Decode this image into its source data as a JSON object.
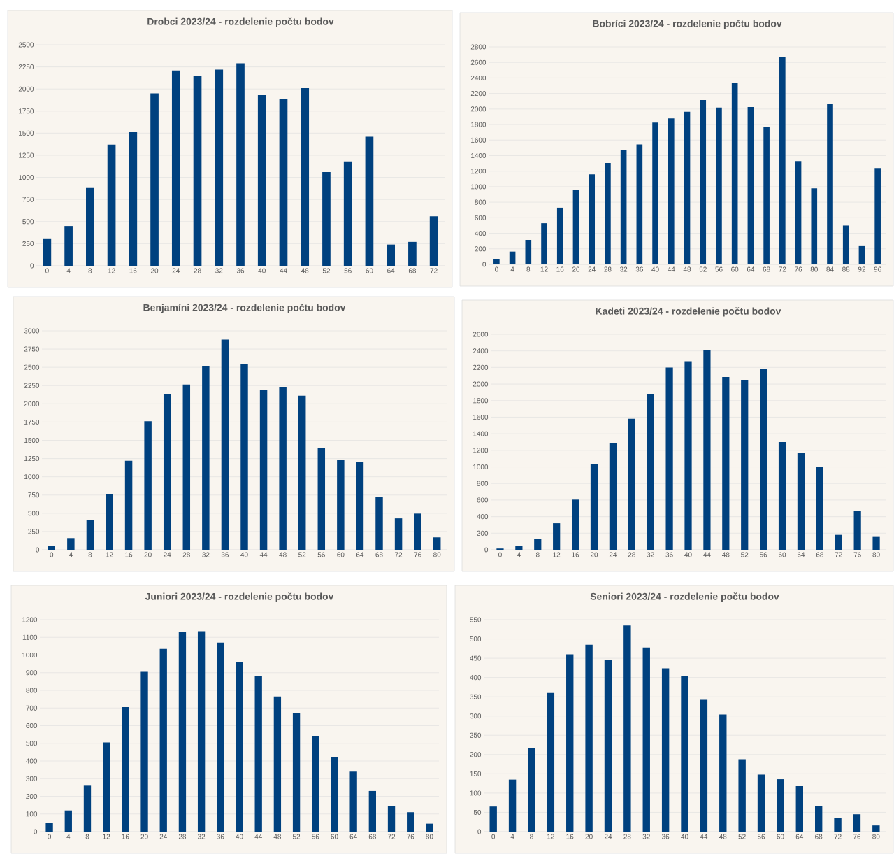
{
  "chart_data": [
    {
      "type": "bar",
      "title": "Drobci 2023/24 - rozdelenie počtu bodov",
      "categories": [
        "0",
        "4",
        "8",
        "12",
        "16",
        "20",
        "24",
        "28",
        "32",
        "36",
        "40",
        "44",
        "48",
        "52",
        "56",
        "60",
        "64",
        "68",
        "72"
      ],
      "values": [
        310,
        450,
        880,
        1370,
        1510,
        1950,
        2210,
        2150,
        2220,
        2290,
        1930,
        1890,
        2010,
        1060,
        1180,
        1460,
        240,
        270,
        560
      ],
      "color": "#00417f",
      "ylim": [
        0,
        2500
      ],
      "yticks": [
        0,
        250,
        500,
        750,
        1000,
        1250,
        1500,
        1750,
        2000,
        2250,
        2500
      ],
      "grid": "y"
    },
    {
      "type": "bar",
      "title": "Bobríci 2023/24 - rozdelenie počtu bodov",
      "categories": [
        "0",
        "4",
        "8",
        "12",
        "16",
        "20",
        "24",
        "28",
        "32",
        "36",
        "40",
        "44",
        "48",
        "52",
        "56",
        "60",
        "64",
        "68",
        "72",
        "76",
        "80",
        "84",
        "88",
        "92",
        "96"
      ],
      "values": [
        70,
        165,
        315,
        530,
        730,
        960,
        1160,
        1305,
        1475,
        1545,
        1825,
        1880,
        1965,
        2115,
        2020,
        2335,
        2025,
        1770,
        2670,
        1330,
        980,
        2070,
        500,
        235,
        1240
      ],
      "color": "#00417f",
      "ylim": [
        0,
        2800
      ],
      "yticks": [
        0,
        200,
        400,
        600,
        800,
        1000,
        1200,
        1400,
        1600,
        1800,
        2000,
        2200,
        2400,
        2600,
        2800
      ],
      "grid": "y"
    },
    {
      "type": "bar",
      "title": "Benjamíni 2023/24 - rozdelenie počtu bodov",
      "categories": [
        "0",
        "4",
        "8",
        "12",
        "16",
        "20",
        "24",
        "28",
        "32",
        "36",
        "40",
        "44",
        "48",
        "52",
        "56",
        "60",
        "64",
        "68",
        "72",
        "76",
        "80"
      ],
      "values": [
        50,
        160,
        410,
        760,
        1220,
        1760,
        2130,
        2265,
        2520,
        2880,
        2545,
        2190,
        2225,
        2110,
        1400,
        1235,
        1205,
        720,
        430,
        495,
        170
      ],
      "color": "#00417f",
      "ylim": [
        0,
        3000
      ],
      "yticks": [
        0,
        250,
        500,
        750,
        1000,
        1250,
        1500,
        1750,
        2000,
        2250,
        2500,
        2750,
        3000
      ],
      "grid": "y"
    },
    {
      "type": "bar",
      "title": "Kadeti 2023/24 - rozdelenie počtu bodov",
      "categories": [
        "0",
        "4",
        "8",
        "12",
        "16",
        "20",
        "24",
        "28",
        "32",
        "36",
        "40",
        "44",
        "48",
        "52",
        "56",
        "60",
        "64",
        "68",
        "72",
        "76",
        "80"
      ],
      "values": [
        15,
        45,
        135,
        320,
        605,
        1030,
        1290,
        1580,
        1875,
        2200,
        2275,
        2410,
        2085,
        2045,
        2180,
        1300,
        1165,
        1005,
        180,
        465,
        155
      ],
      "color": "#00417f",
      "ylim": [
        0,
        2600
      ],
      "yticks": [
        0,
        200,
        400,
        600,
        800,
        1000,
        1200,
        1400,
        1600,
        1800,
        2000,
        2200,
        2400,
        2600
      ],
      "grid": "y"
    },
    {
      "type": "bar",
      "title": "Juniori 2023/24 - rozdelenie počtu bodov",
      "categories": [
        "0",
        "4",
        "8",
        "12",
        "16",
        "20",
        "24",
        "28",
        "32",
        "36",
        "40",
        "44",
        "48",
        "52",
        "56",
        "60",
        "64",
        "68",
        "72",
        "76",
        "80"
      ],
      "values": [
        50,
        120,
        260,
        505,
        705,
        905,
        1035,
        1130,
        1135,
        1070,
        960,
        880,
        765,
        670,
        540,
        420,
        340,
        230,
        145,
        110,
        45
      ],
      "color": "#00417f",
      "ylim": [
        0,
        1200
      ],
      "yticks": [
        0,
        100,
        200,
        300,
        400,
        500,
        600,
        700,
        800,
        900,
        1000,
        1100,
        1200
      ],
      "grid": "y"
    },
    {
      "type": "bar",
      "title": "Seniori 2023/24 - rozdelenie počtu bodov",
      "categories": [
        "0",
        "4",
        "8",
        "12",
        "16",
        "20",
        "24",
        "28",
        "32",
        "36",
        "40",
        "44",
        "48",
        "52",
        "56",
        "60",
        "64",
        "68",
        "72",
        "76",
        "80"
      ],
      "values": [
        65,
        135,
        218,
        360,
        460,
        485,
        446,
        535,
        478,
        424,
        403,
        342,
        304,
        188,
        148,
        136,
        118,
        67,
        36,
        45,
        16
      ],
      "color": "#00417f",
      "ylim": [
        0,
        550
      ],
      "yticks": [
        0,
        50,
        100,
        150,
        200,
        250,
        300,
        350,
        400,
        450,
        500,
        550
      ],
      "grid": "y"
    }
  ]
}
